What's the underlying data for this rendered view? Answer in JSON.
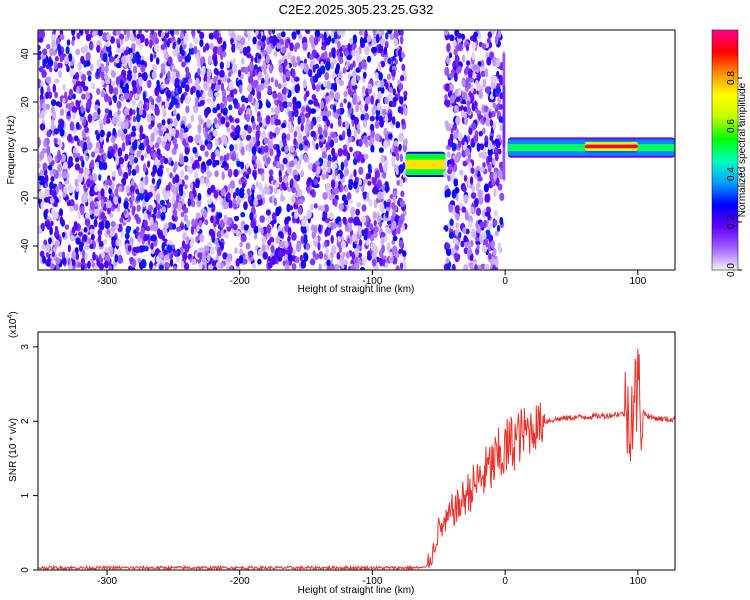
{
  "title": "C2E2.2025.305.23.25.G32",
  "chart_data": [
    {
      "type": "heatmap",
      "xlabel": "Height of straight line (km)",
      "ylabel": "Frequency (Hz)",
      "xlim": [
        -352,
        128
      ],
      "ylim": [
        -50,
        50
      ],
      "x_ticks": [
        -300,
        -200,
        -100,
        0,
        100
      ],
      "y_ticks": [
        -40,
        -20,
        0,
        20,
        40
      ],
      "colorbar": {
        "label": "Normalized spectral amplitude",
        "range": [
          0,
          1
        ],
        "ticks": [
          0.0,
          0.2,
          0.4,
          0.6,
          0.8
        ],
        "colors": [
          "#f2f2f2",
          "#a060ff",
          "#6000ff",
          "#0000ff",
          "#00a0ff",
          "#00ffc0",
          "#00ff00",
          "#c0ff00",
          "#ffff00",
          "#ff9000",
          "#ff0000",
          "#ff0090"
        ]
      },
      "regions": [
        {
          "x": [
            -352,
            -75
          ],
          "freq": [
            -50,
            50
          ],
          "amplitude": 0.12,
          "note": "noise"
        },
        {
          "x": [
            -75,
            -45
          ],
          "freq": [
            -10,
            -2
          ],
          "amplitude": 0.75
        },
        {
          "x": [
            -45,
            -2
          ],
          "freq": [
            -50,
            50
          ],
          "amplitude": 0.12,
          "note": "noise"
        },
        {
          "x": [
            -2,
            0
          ],
          "freq": [
            -12,
            40
          ],
          "amplitude": 0.15
        },
        {
          "x": [
            2,
            128
          ],
          "freq": [
            -2,
            4
          ],
          "amplitude": 0.5
        },
        {
          "x": [
            60,
            100
          ],
          "freq": [
            0,
            3
          ],
          "amplitude": 0.95
        }
      ]
    },
    {
      "type": "line",
      "xlabel": "Height of straight line (km)",
      "ylabel": "SNR (10 * v/v)",
      "y_multiplier": "(x10",
      "y_multiplier_exp": "4",
      "y_multiplier_close": ")",
      "xlim": [
        -352,
        128
      ],
      "ylim": [
        0,
        3.2
      ],
      "x_ticks": [
        -300,
        -200,
        -100,
        0,
        100
      ],
      "y_ticks": [
        0,
        1,
        2,
        3
      ],
      "color": "#e8322c",
      "series": [
        {
          "x": [
            -352,
            -300,
            -200,
            -100,
            -60,
            -55,
            -50,
            -45,
            -40,
            -35,
            -30,
            -25,
            -20,
            -15,
            -10,
            -5,
            0,
            5,
            10,
            15,
            20,
            25,
            30,
            40,
            50,
            60,
            70,
            80,
            85,
            90,
            95,
            98,
            100,
            102,
            105,
            110,
            120,
            128
          ],
          "y": [
            0.03,
            0.03,
            0.03,
            0.03,
            0.03,
            0.2,
            0.55,
            0.6,
            0.8,
            0.85,
            1.0,
            1.1,
            1.2,
            1.3,
            1.4,
            1.5,
            1.6,
            1.7,
            1.8,
            1.85,
            1.9,
            1.95,
            2.0,
            2.03,
            2.05,
            2.06,
            2.07,
            2.08,
            2.1,
            2.1,
            2.15,
            2.3,
            2.5,
            2.2,
            2.1,
            2.05,
            2.03,
            2.02
          ]
        }
      ]
    }
  ]
}
